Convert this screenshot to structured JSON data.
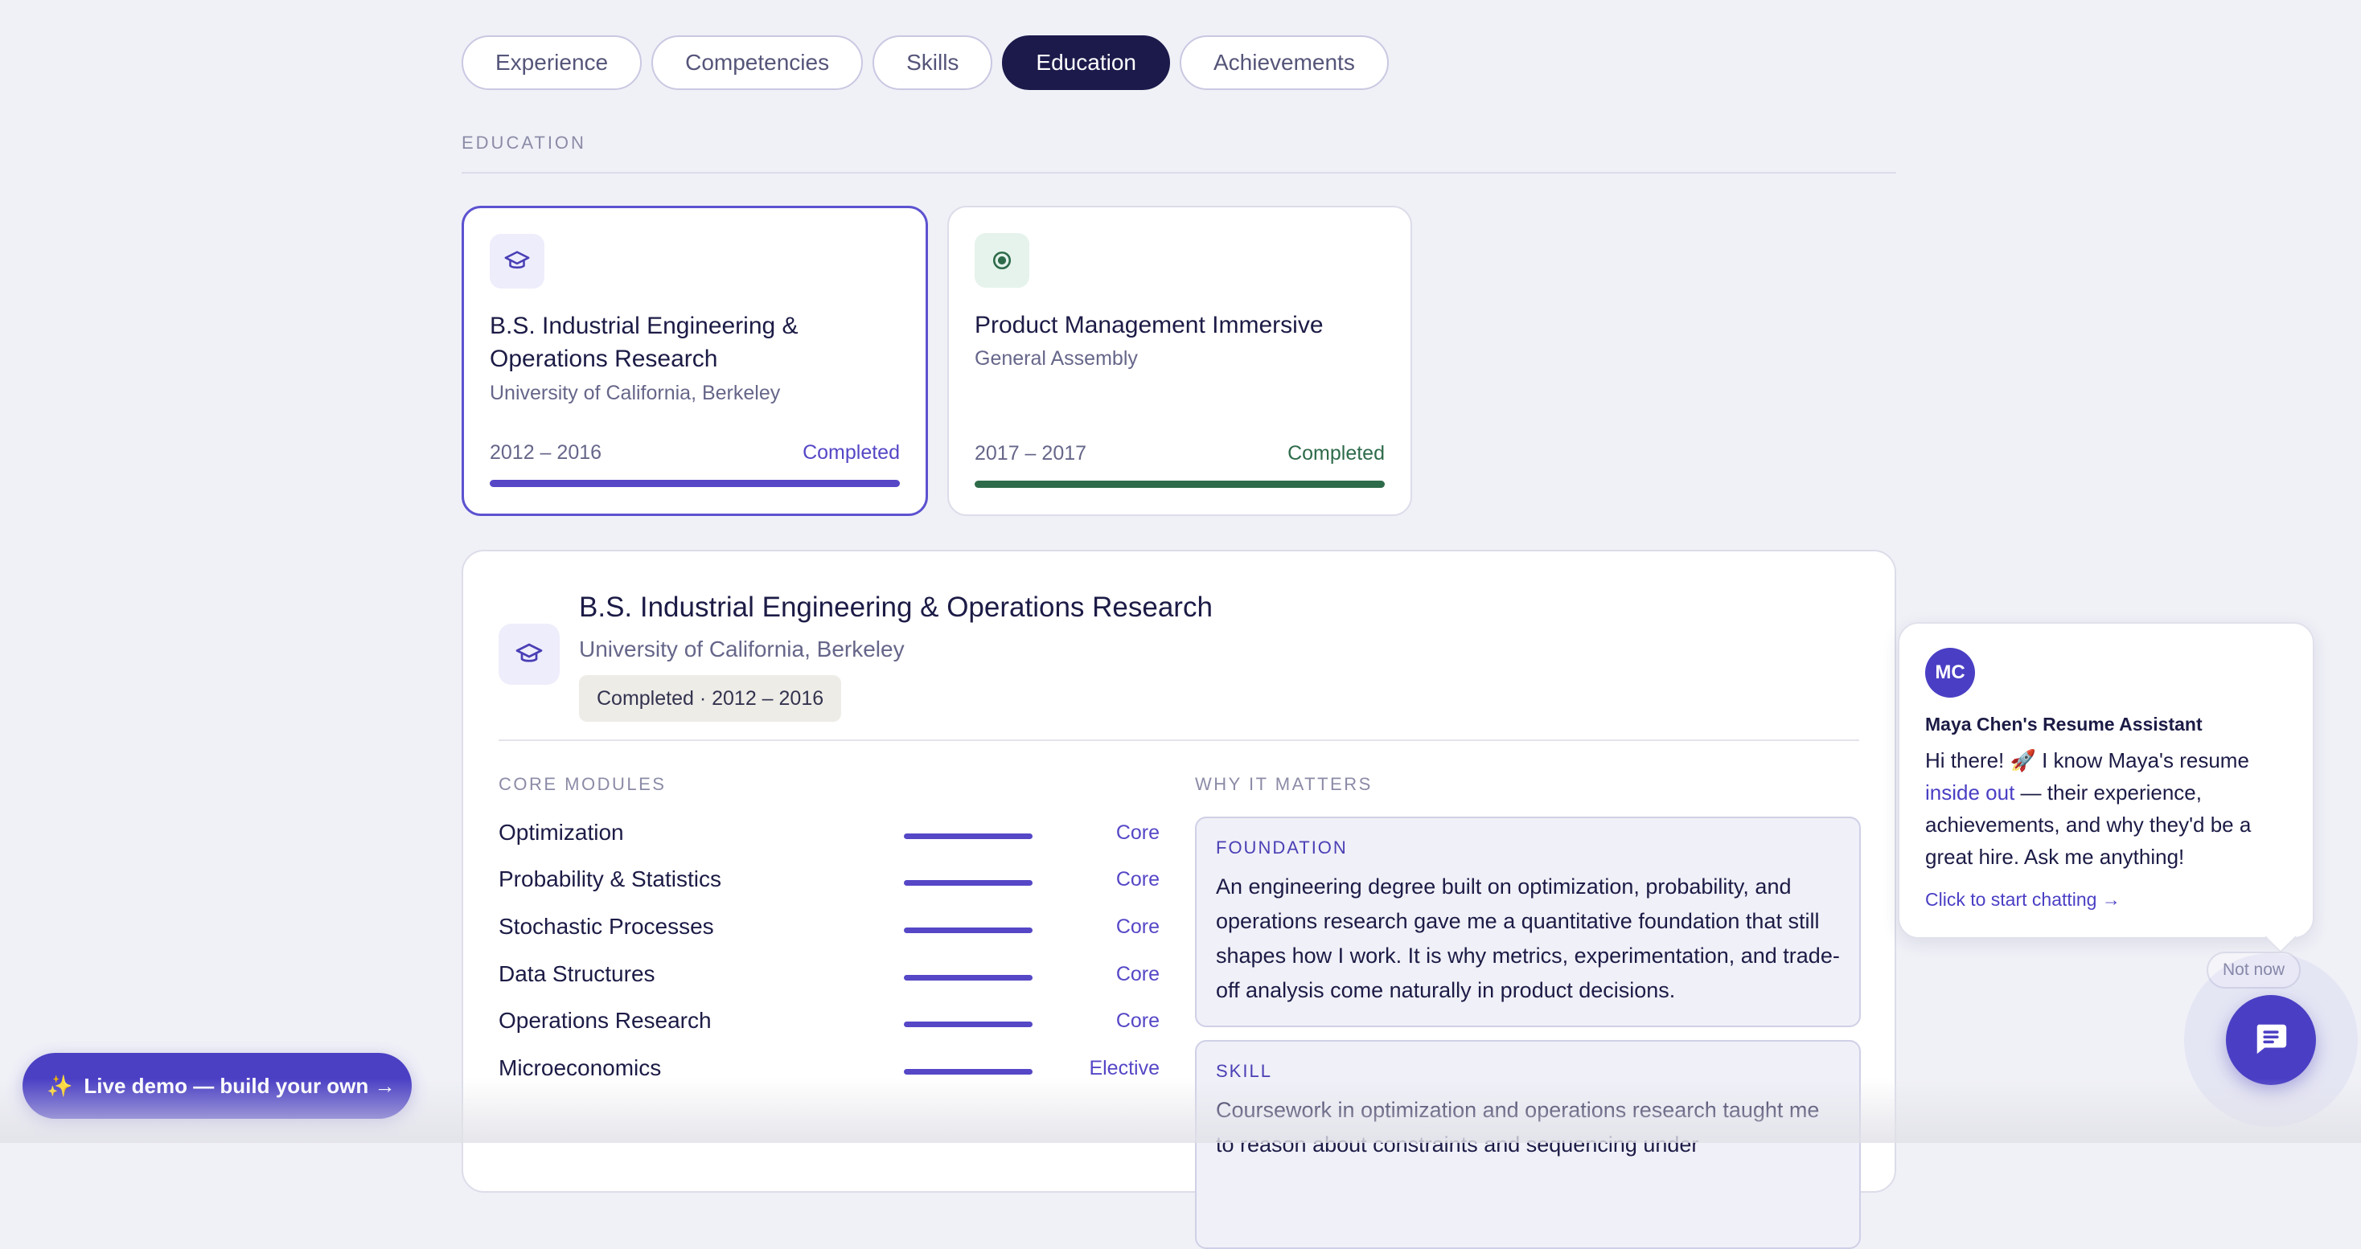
{
  "tabs": [
    "Experience",
    "Competencies",
    "Skills",
    "Education",
    "Achievements"
  ],
  "active_tab": "Education",
  "section": {
    "label": "EDUCATION"
  },
  "cards": [
    {
      "icon": "graduation-cap-icon",
      "title": "B.S. Industrial Engineering & Operations Research",
      "org": "University of California, Berkeley",
      "years": "2012 – 2016",
      "status": "Completed",
      "progress": 1.0,
      "accent": "#5547c6",
      "selected": true
    },
    {
      "icon": "target-icon",
      "title": "Product Management Immersive",
      "org": "General Assembly",
      "years": "2017 – 2017",
      "status": "Completed",
      "progress": 1.0,
      "accent": "#2e6b4a",
      "selected": false
    }
  ],
  "detail": {
    "title": "B.S. Industrial Engineering & Operations Research",
    "org": "University of California, Berkeley",
    "badge": "Completed · 2012 – 2016",
    "modules_label": "CORE MODULES",
    "modules": [
      {
        "name": "Optimization",
        "level": "Core"
      },
      {
        "name": "Probability & Statistics",
        "level": "Core"
      },
      {
        "name": "Stochastic Processes",
        "level": "Core"
      },
      {
        "name": "Data Structures",
        "level": "Core"
      },
      {
        "name": "Operations Research",
        "level": "Core"
      },
      {
        "name": "Microeconomics",
        "level": "Elective"
      }
    ],
    "why_label": "WHY IT MATTERS",
    "why": [
      {
        "label": "FOUNDATION",
        "text": "An engineering degree built on optimization, probability, and operations research gave me a quantitative foundation that still shapes how I work. It is why metrics, experimentation, and trade-off analysis come naturally in product decisions."
      },
      {
        "label": "SKILL",
        "text": "Coursework in optimization and operations research taught me to reason about constraints and sequencing under"
      }
    ]
  },
  "chat": {
    "avatar_initials": "MC",
    "assistant_name": "Maya Chen's Resume Assistant",
    "message_part1": "Hi there! 🚀 I know Maya's resume ",
    "message_highlight": "inside out",
    "message_part2": " — their experience, achievements, and why they'd be a great hire. Ask me anything!",
    "cta": "Click to start chatting →",
    "dismiss": "Not now"
  },
  "demo_button": {
    "icon": "sparkles-icon",
    "label": "Live demo — build your own →"
  },
  "colors": {
    "accent": "#4a3fc4",
    "navy": "#1c1a4b",
    "green": "#2e6b4a"
  }
}
